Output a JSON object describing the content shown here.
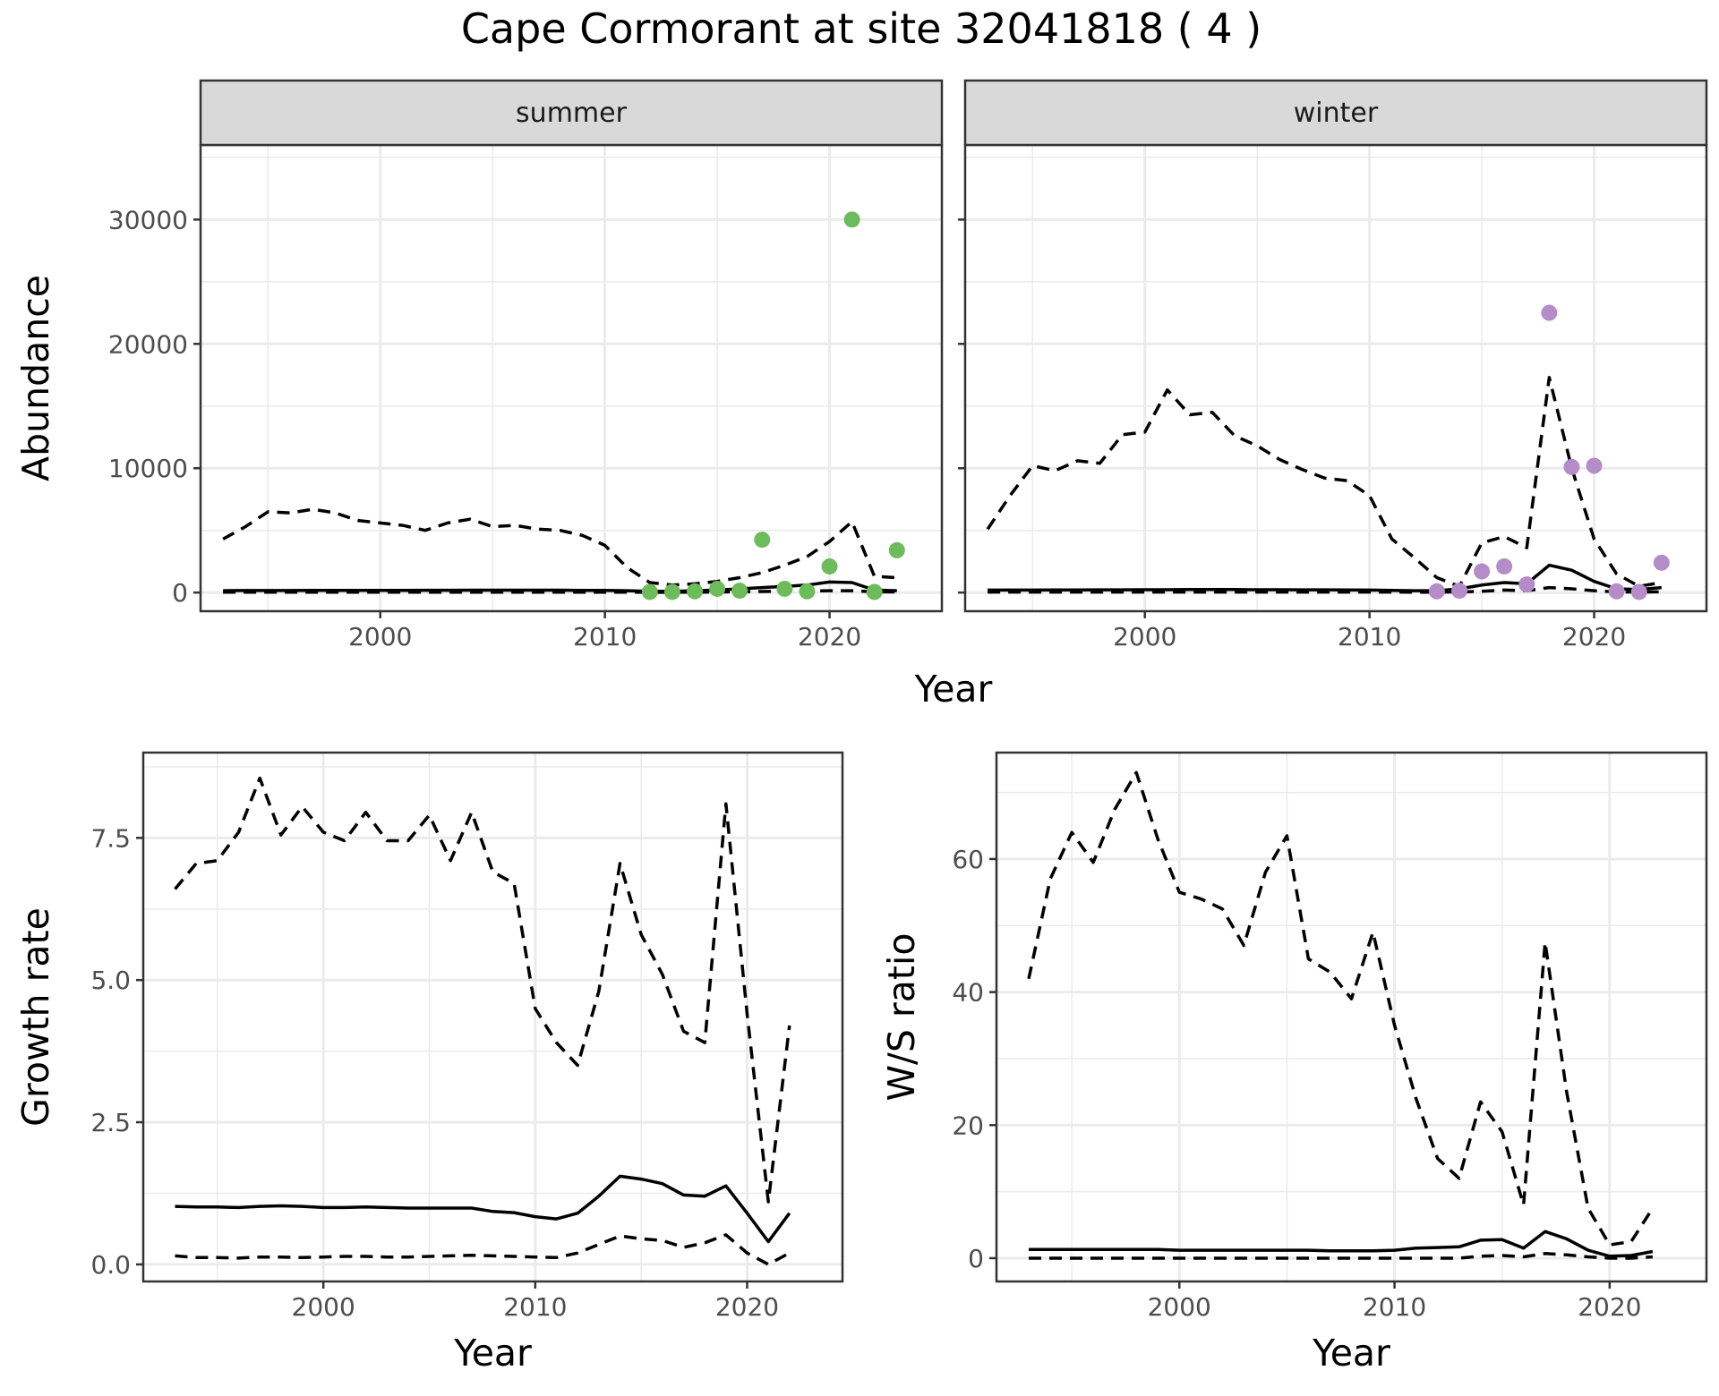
{
  "figure": {
    "title": "Cape Cormorant at site 32041818 ( 4 )"
  },
  "colors": {
    "summer_points": "#6dbb5a",
    "winter_points": "#b48cc8",
    "lines": "#000000"
  },
  "chart_data": [
    {
      "id": "abundance-summer",
      "type": "line",
      "strip_label": "summer",
      "ylabel": "Abundance",
      "xlabel": "Year",
      "xlim": [
        1992,
        2025
      ],
      "ylim": [
        -1500,
        36000
      ],
      "xticks": [
        2000,
        2010,
        2020
      ],
      "yticks": [
        0,
        10000,
        20000,
        30000
      ],
      "x": [
        1993,
        1994,
        1995,
        1996,
        1997,
        1998,
        1999,
        2000,
        2001,
        2002,
        2003,
        2004,
        2005,
        2006,
        2007,
        2008,
        2009,
        2010,
        2011,
        2012,
        2013,
        2014,
        2015,
        2016,
        2017,
        2018,
        2019,
        2020,
        2021,
        2022,
        2023
      ],
      "series": [
        {
          "line": "solid",
          "values": [
            150,
            160,
            160,
            165,
            170,
            170,
            175,
            180,
            180,
            185,
            185,
            190,
            190,
            190,
            190,
            190,
            180,
            170,
            150,
            100,
            100,
            150,
            200,
            300,
            400,
            500,
            600,
            850,
            800,
            200,
            150
          ]
        },
        {
          "line": "dashed",
          "values": [
            30,
            30,
            30,
            30,
            30,
            30,
            30,
            30,
            30,
            30,
            30,
            30,
            30,
            30,
            30,
            30,
            30,
            30,
            30,
            20,
            20,
            30,
            40,
            60,
            80,
            100,
            120,
            150,
            150,
            60,
            50
          ]
        },
        {
          "line": "dashed",
          "values": [
            4300,
            5300,
            6500,
            6400,
            6700,
            6400,
            5800,
            5600,
            5400,
            5000,
            5600,
            5900,
            5300,
            5400,
            5100,
            5000,
            4600,
            3800,
            2000,
            800,
            600,
            700,
            900,
            1200,
            1600,
            2200,
            2900,
            4100,
            5700,
            1300,
            1200
          ]
        }
      ],
      "points": {
        "color": "#6dbb5a",
        "x": [
          2012,
          2013,
          2014,
          2015,
          2016,
          2017,
          2018,
          2019,
          2020,
          2021,
          2022,
          2023
        ],
        "y": [
          50,
          50,
          100,
          300,
          150,
          4250,
          300,
          100,
          2100,
          30000,
          50,
          3400
        ]
      }
    },
    {
      "id": "abundance-winter",
      "type": "line",
      "strip_label": "winter",
      "xlabel": "Year",
      "xlim": [
        1992,
        2025
      ],
      "ylim": [
        -1500,
        36000
      ],
      "xticks": [
        2000,
        2010,
        2020
      ],
      "x": [
        1993,
        1994,
        1995,
        1996,
        1997,
        1998,
        1999,
        2000,
        2001,
        2002,
        2003,
        2004,
        2005,
        2006,
        2007,
        2008,
        2009,
        2010,
        2011,
        2012,
        2013,
        2014,
        2015,
        2016,
        2017,
        2018,
        2019,
        2020,
        2021,
        2022,
        2023
      ],
      "series": [
        {
          "line": "solid",
          "values": [
            200,
            200,
            200,
            210,
            210,
            220,
            220,
            230,
            230,
            240,
            240,
            240,
            230,
            230,
            220,
            220,
            210,
            200,
            180,
            150,
            150,
            300,
            600,
            800,
            700,
            2200,
            1800,
            900,
            300,
            250,
            400
          ]
        },
        {
          "line": "dashed",
          "values": [
            40,
            40,
            40,
            40,
            40,
            40,
            40,
            40,
            40,
            40,
            40,
            40,
            40,
            40,
            40,
            40,
            40,
            40,
            40,
            30,
            30,
            50,
            100,
            200,
            150,
            400,
            300,
            150,
            50,
            40,
            60
          ]
        },
        {
          "line": "dashed",
          "values": [
            5100,
            7800,
            10200,
            9800,
            10600,
            10400,
            12700,
            12900,
            16300,
            14300,
            14500,
            12600,
            11800,
            10700,
            9900,
            9200,
            9000,
            7800,
            4300,
            2800,
            1200,
            500,
            4000,
            4500,
            3600,
            17300,
            10000,
            4300,
            1500,
            500,
            800
          ]
        }
      ],
      "points": {
        "color": "#b48cc8",
        "x": [
          2013,
          2014,
          2015,
          2016,
          2017,
          2018,
          2019,
          2020,
          2021,
          2022,
          2023
        ],
        "y": [
          100,
          150,
          1700,
          2100,
          650,
          22500,
          10100,
          10200,
          100,
          50,
          2400
        ]
      }
    },
    {
      "id": "growth-rate",
      "type": "line",
      "ylabel": "Growth rate",
      "xlabel": "Year",
      "xlim": [
        1991.5,
        2024.5
      ],
      "ylim": [
        -0.3,
        9.0
      ],
      "xticks": [
        2000,
        2010,
        2020
      ],
      "yticks": [
        0.0,
        2.5,
        5.0,
        7.5
      ],
      "ytick_labels": [
        "0.0",
        "2.5",
        "5.0",
        "7.5"
      ],
      "x": [
        1993,
        1994,
        1995,
        1996,
        1997,
        1998,
        1999,
        2000,
        2001,
        2002,
        2003,
        2004,
        2005,
        2006,
        2007,
        2008,
        2009,
        2010,
        2011,
        2012,
        2013,
        2014,
        2015,
        2016,
        2017,
        2018,
        2019,
        2020,
        2021,
        2022
      ],
      "series": [
        {
          "line": "solid",
          "values": [
            1.02,
            1.01,
            1.01,
            1.0,
            1.02,
            1.03,
            1.02,
            1.0,
            1.0,
            1.01,
            1.0,
            0.99,
            0.99,
            0.99,
            0.99,
            0.93,
            0.91,
            0.84,
            0.8,
            0.9,
            1.2,
            1.55,
            1.5,
            1.42,
            1.22,
            1.2,
            1.38,
            0.9,
            0.4,
            0.9
          ]
        },
        {
          "line": "dashed",
          "values": [
            0.15,
            0.12,
            0.12,
            0.11,
            0.13,
            0.13,
            0.12,
            0.13,
            0.14,
            0.14,
            0.13,
            0.13,
            0.14,
            0.15,
            0.16,
            0.15,
            0.14,
            0.13,
            0.12,
            0.2,
            0.35,
            0.5,
            0.45,
            0.42,
            0.3,
            0.38,
            0.52,
            0.2,
            0.0,
            0.2
          ]
        },
        {
          "line": "dashed",
          "values": [
            6.6,
            7.05,
            7.1,
            7.6,
            8.55,
            7.55,
            8.05,
            7.6,
            7.45,
            7.95,
            7.45,
            7.45,
            7.9,
            7.1,
            7.95,
            6.9,
            6.7,
            4.5,
            3.9,
            3.5,
            4.8,
            7.05,
            5.8,
            5.1,
            4.1,
            3.9,
            8.1,
            4.4,
            1.1,
            4.2
          ]
        }
      ]
    },
    {
      "id": "ws-ratio",
      "type": "line",
      "ylabel": "W/S ratio",
      "xlabel": "Year",
      "xlim": [
        1991.5,
        2024.5
      ],
      "ylim": [
        -3.5,
        76
      ],
      "xticks": [
        2000,
        2010,
        2020
      ],
      "yticks": [
        0,
        20,
        40,
        60
      ],
      "x": [
        1993,
        1994,
        1995,
        1996,
        1997,
        1998,
        1999,
        2000,
        2001,
        2002,
        2003,
        2004,
        2005,
        2006,
        2007,
        2008,
        2009,
        2010,
        2011,
        2012,
        2013,
        2014,
        2015,
        2016,
        2017,
        2018,
        2019,
        2020,
        2021,
        2022
      ],
      "series": [
        {
          "line": "solid",
          "values": [
            1.3,
            1.3,
            1.3,
            1.3,
            1.3,
            1.3,
            1.3,
            1.2,
            1.2,
            1.2,
            1.2,
            1.2,
            1.2,
            1.2,
            1.1,
            1.1,
            1.1,
            1.2,
            1.5,
            1.6,
            1.7,
            2.7,
            2.8,
            1.5,
            4.0,
            2.9,
            1.2,
            0.3,
            0.4,
            1.0
          ]
        },
        {
          "line": "dashed",
          "values": [
            0,
            0,
            0,
            0,
            0,
            0,
            0,
            0,
            0,
            0,
            0,
            0,
            0,
            0,
            0,
            0,
            0,
            0,
            0,
            0,
            0,
            0.3,
            0.4,
            0.2,
            0.7,
            0.5,
            0.2,
            0,
            0,
            0.2
          ]
        },
        {
          "line": "dashed",
          "values": [
            42,
            57,
            64,
            59.5,
            67.5,
            73,
            63,
            55,
            54,
            52.5,
            47,
            58,
            63.5,
            45,
            43,
            39,
            49,
            35,
            24,
            15,
            12,
            23.5,
            19,
            8,
            47.5,
            25,
            7.5,
            2,
            2.5,
            7.5
          ]
        }
      ]
    }
  ]
}
